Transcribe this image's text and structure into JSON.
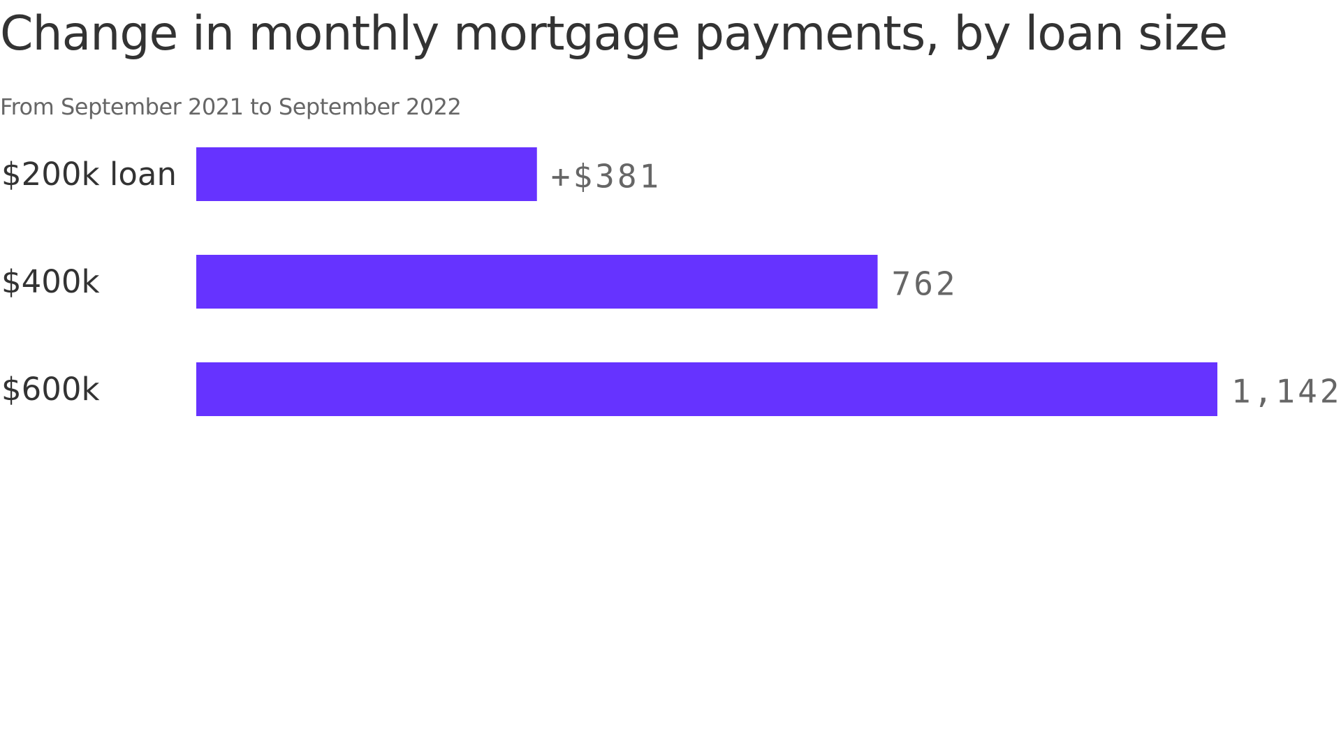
{
  "chart_data": {
    "type": "bar",
    "orientation": "horizontal",
    "title": "Change in monthly mortgage payments, by loan size",
    "subtitle": "From September 2021 to September 2022",
    "categories": [
      "$200k loan",
      "$400k",
      "$600k"
    ],
    "values": [
      381,
      762,
      1142
    ],
    "value_labels": [
      "+$381",
      "762",
      "1,142"
    ],
    "xlabel": "",
    "ylabel": "",
    "xlim": [
      0,
      1142
    ],
    "grid": false,
    "legend": "none",
    "colors": {
      "bar": "#6633ff",
      "title": "#333333",
      "subtitle": "#666666",
      "category_label": "#333333",
      "value_label": "#666666"
    }
  }
}
